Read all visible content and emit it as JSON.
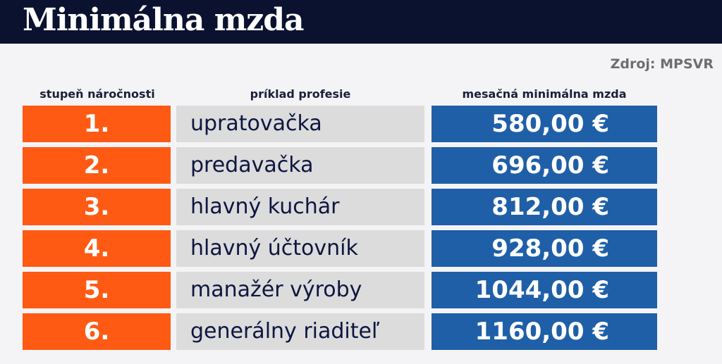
{
  "header": {
    "title": "Minimálna mzda"
  },
  "source": "Zdroj: MPSVR",
  "columns": {
    "rank": "stupeň náročnosti",
    "profession": "príklad profesie",
    "wage": "mesačná minimálna mzda"
  },
  "rows": [
    {
      "rank": "1.",
      "profession": "upratovačka",
      "wage": "580,00 €"
    },
    {
      "rank": "2.",
      "profession": "predavačka",
      "wage": "696,00 €"
    },
    {
      "rank": "3.",
      "profession": "hlavný kuchár",
      "wage": "812,00 €"
    },
    {
      "rank": "4.",
      "profession": "hlavný účtovník",
      "wage": "928,00 €"
    },
    {
      "rank": "5.",
      "profession": "manažér výroby",
      "wage": "1044,00 €"
    },
    {
      "rank": "6.",
      "profession": "generálny riaditeľ",
      "wage": "1160,00 €"
    }
  ],
  "colors": {
    "header_bg": "#0a1230",
    "rank_bg": "#ff5a14",
    "profession_bg": "#dcdcdc",
    "wage_bg": "#1f5fa8"
  }
}
